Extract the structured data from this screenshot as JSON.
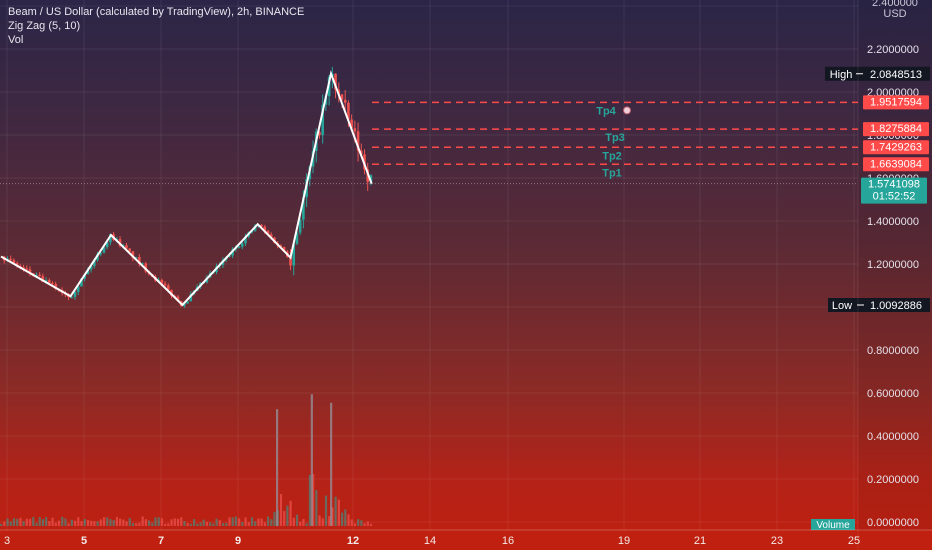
{
  "header": {
    "title": "Beam / US Dollar (calculated by TradingView), 2h, BINANCE",
    "indicator_zigzag": "Zig Zag (5, 10)",
    "indicator_vol": "Vol"
  },
  "price_scale": {
    "currency": "USD",
    "top_tick": "2.400000",
    "ticks": [
      "2.2000000",
      "2.0000000",
      "1.8000000",
      "1.6000000",
      "1.4000000",
      "1.2000000",
      "1.0000000",
      "0.8000000",
      "0.6000000",
      "0.4000000",
      "0.2000000",
      "0.0000000"
    ]
  },
  "time_axis": {
    "labels": [
      "3",
      "5",
      "7",
      "9",
      "12",
      "14",
      "16",
      "19",
      "21",
      "23",
      "25"
    ],
    "bold": [
      "5",
      "7",
      "9",
      "12"
    ]
  },
  "badges": {
    "high_label": "High",
    "high_value": "2.0848513",
    "low_label": "Low",
    "low_value": "1.0092886",
    "last_price": "1.5741098",
    "countdown": "01:52:52",
    "volume_label": "Volume"
  },
  "targets": [
    {
      "label": "Tp1",
      "price": "1.6639084",
      "value": 1.6639084
    },
    {
      "label": "Tp2",
      "price": "1.7429263",
      "value": 1.7429263
    },
    {
      "label": "Tp3",
      "price": "1.8275884",
      "value": 1.8275884
    },
    {
      "label": "Tp4",
      "price": "1.9517594",
      "value": 1.9517594
    }
  ],
  "colors": {
    "up": "#26a69a",
    "down": "#ef5350",
    "target_line": "#ff4a4a",
    "target_text": "#26a69a",
    "zigzag": "#ffffff",
    "badge_dark": "#131722",
    "badge_green": "#26a69a"
  },
  "chart_data": {
    "type": "candlestick",
    "symbol": "Beam / US Dollar",
    "interval": "2h",
    "exchange": "BINANCE",
    "ylim": [
      0.0,
      2.4
    ],
    "high": 2.0848513,
    "low": 1.0092886,
    "last": 1.5741098,
    "zigzag": [
      {
        "day": 2.85,
        "price": 1.235
      },
      {
        "day": 4.65,
        "price": 1.05
      },
      {
        "day": 5.7,
        "price": 1.335
      },
      {
        "day": 7.55,
        "price": 1.01
      },
      {
        "day": 9.5,
        "price": 1.385
      },
      {
        "day": 10.35,
        "price": 1.23
      },
      {
        "day": 11.4,
        "price": 2.085
      },
      {
        "day": 12.45,
        "price": 1.574
      }
    ],
    "volume_scale": [
      0.0,
      2.5
    ],
    "volume_spikes": [
      {
        "day": 10.0,
        "value": 0.55
      },
      {
        "day": 10.9,
        "value": 0.62
      },
      {
        "day": 11.4,
        "value": 0.58
      }
    ],
    "grid": true
  }
}
